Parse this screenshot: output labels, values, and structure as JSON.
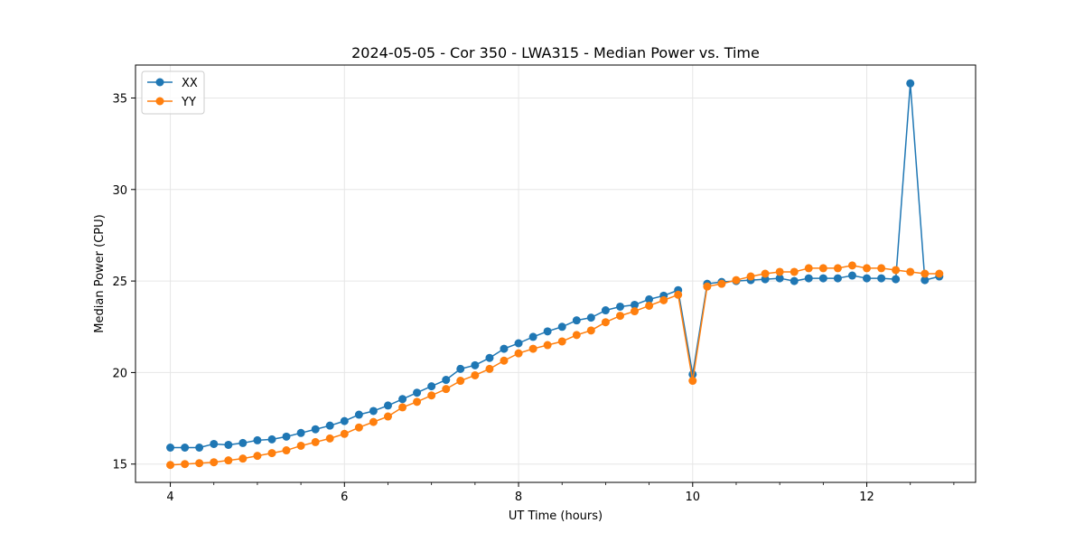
{
  "chart_data": {
    "type": "line",
    "title": "2024-05-05 - Cor 350 - LWA315 - Median Power vs. Time",
    "xlabel": "UT Time (hours)",
    "ylabel": "Median Power (CPU)",
    "xlim": [
      3.6,
      13.25
    ],
    "ylim": [
      14.0,
      36.8
    ],
    "xticks": [
      4,
      6,
      8,
      10,
      12
    ],
    "xtick_labels": [
      "4",
      "6",
      "8",
      "10",
      "12"
    ],
    "yticks": [
      15,
      20,
      25,
      30,
      35
    ],
    "ytick_labels": [
      "15",
      "20",
      "25",
      "30",
      "35"
    ],
    "grid": true,
    "legend": "top-left",
    "x": [
      4.0,
      4.167,
      4.333,
      4.5,
      4.667,
      4.833,
      5.0,
      5.167,
      5.333,
      5.5,
      5.667,
      5.833,
      6.0,
      6.167,
      6.333,
      6.5,
      6.667,
      6.833,
      7.0,
      7.167,
      7.333,
      7.5,
      7.667,
      7.833,
      8.0,
      8.167,
      8.333,
      8.5,
      8.667,
      8.833,
      9.0,
      9.167,
      9.333,
      9.5,
      9.667,
      9.833,
      10.0,
      10.167,
      10.333,
      10.5,
      10.667,
      10.833,
      11.0,
      11.167,
      11.333,
      11.5,
      11.667,
      11.833,
      12.0,
      12.167,
      12.333,
      12.5,
      12.667,
      12.833
    ],
    "series": [
      {
        "name": "XX",
        "color": "#1f77b4",
        "values": [
          15.9,
          15.9,
          15.9,
          16.1,
          16.05,
          16.15,
          16.3,
          16.35,
          16.5,
          16.7,
          16.9,
          17.1,
          17.35,
          17.7,
          17.9,
          18.2,
          18.55,
          18.9,
          19.25,
          19.6,
          20.2,
          20.4,
          20.8,
          21.3,
          21.6,
          21.95,
          22.25,
          22.5,
          22.85,
          23.0,
          23.4,
          23.6,
          23.7,
          24.0,
          24.2,
          24.5,
          19.9,
          24.85,
          24.95,
          25.0,
          25.05,
          25.1,
          25.15,
          25.0,
          25.15,
          25.15,
          25.15,
          25.3,
          25.15,
          25.15,
          25.1,
          35.8,
          25.05,
          25.25
        ]
      },
      {
        "name": "YY",
        "color": "#ff7f0e",
        "values": [
          14.95,
          15.0,
          15.05,
          15.1,
          15.2,
          15.3,
          15.45,
          15.6,
          15.75,
          16.0,
          16.2,
          16.4,
          16.65,
          17.0,
          17.3,
          17.6,
          18.1,
          18.4,
          18.75,
          19.1,
          19.55,
          19.85,
          20.2,
          20.65,
          21.05,
          21.3,
          21.5,
          21.7,
          22.05,
          22.3,
          22.75,
          23.1,
          23.35,
          23.65,
          23.95,
          24.25,
          19.55,
          24.7,
          24.85,
          25.05,
          25.25,
          25.4,
          25.5,
          25.5,
          25.7,
          25.7,
          25.7,
          25.85,
          25.7,
          25.7,
          25.6,
          25.5,
          25.4,
          25.4
        ]
      }
    ]
  }
}
